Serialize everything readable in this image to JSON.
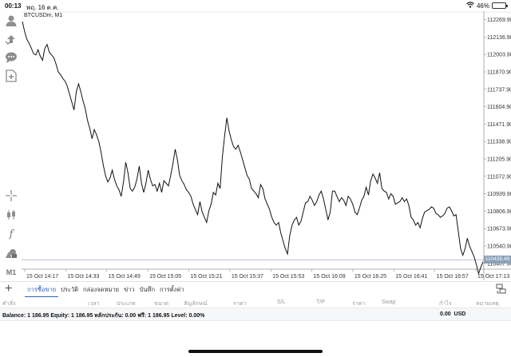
{
  "status_bar": {
    "time": "00:13",
    "date": "พฤ. 16 ต.ค.",
    "battery": "46%",
    "battery_level": 0.46
  },
  "left_toolbar": [
    {
      "name": "account-icon"
    },
    {
      "name": "trade-icon"
    },
    {
      "name": "chat-icon"
    },
    {
      "name": "new-order-icon"
    },
    {
      "name": "crosshair-icon"
    },
    {
      "name": "candlestick-icon"
    },
    {
      "name": "indicator-icon",
      "label": "f"
    },
    {
      "name": "objects-icon"
    },
    {
      "name": "timeframe-label",
      "label": "M1"
    }
  ],
  "chart": {
    "symbol": "BTCUSDm, M1",
    "current_price_label": "110435.49",
    "current_price": 110435.49
  },
  "tabs": [
    {
      "label": "การซื้อขาย",
      "active": true
    },
    {
      "label": "ประวัติ",
      "active": false
    },
    {
      "label": "กล่องจดหมาย",
      "active": false
    },
    {
      "label": "ข่าว",
      "active": false
    },
    {
      "label": "บันทึก",
      "active": false
    },
    {
      "label": "การตั้งค่า",
      "active": false
    }
  ],
  "columns": [
    "คำสั่ง",
    "เวลา",
    "ประเภท",
    "ขนาด",
    "สัญลักษณ์",
    "ราคา",
    "S/L",
    "T/P",
    "ราคา",
    "Swap",
    "กำไร",
    "หมายเหตุ"
  ],
  "balance": {
    "text": "Balance: 1 186.95 Equity: 1 186.95 หลักประกัน: 0.00 ฟรี: 1 186.95 Level: 0.00%",
    "profit": "0.00",
    "currency": "USD"
  },
  "chart_data": {
    "type": "line",
    "x_tick_labels": [
      "15 Oct 14:17",
      "15 Oct 14:33",
      "15 Oct 14:49",
      "15 Oct 15:05",
      "15 Oct 15:21",
      "15 Oct 15:37",
      "15 Oct 15:53",
      "15 Oct 16:09",
      "15 Oct 16:25",
      "15 Oct 16:41",
      "15 Oct 16:57",
      "15 Oct 17:13"
    ],
    "y_tick_labels": [
      "112269.90",
      "112136.90",
      "112003.90",
      "111870.90",
      "111737.90",
      "111604.90",
      "111471.90",
      "111338.90",
      "111205.90",
      "111072.90",
      "110939.90",
      "110806.90",
      "110673.90",
      "110540.90",
      "110407.90"
    ],
    "ylim": [
      110370,
      112310
    ],
    "xlim": [
      0,
      189
    ],
    "grid": false,
    "series": [
      {
        "values": [
          112255,
          112180,
          112120,
          112090,
          112050,
          112010,
          112000,
          112040,
          111990,
          111960,
          112050,
          112080,
          112020,
          112000,
          111980,
          111930,
          111870,
          111850,
          111820,
          111800,
          111760,
          111700,
          111640,
          111580,
          111720,
          111780,
          111720,
          111650,
          111590,
          111500,
          111440,
          111360,
          111430,
          111390,
          111340,
          111260,
          111160,
          111080,
          111030,
          111060,
          111120,
          111050,
          111000,
          110970,
          110920,
          111030,
          111180,
          111100,
          110980,
          110960,
          110990,
          111050,
          111150,
          111020,
          110950,
          111020,
          111120,
          111050,
          111000,
          111010,
          110960,
          111020,
          110950,
          111040,
          111020,
          111000,
          111080,
          111170,
          111280,
          111200,
          111080,
          111040,
          111010,
          110970,
          110950,
          110920,
          110860,
          110820,
          110780,
          110880,
          110800,
          110760,
          110720,
          110810,
          110860,
          110950,
          110930,
          111020,
          110980,
          111220,
          111380,
          111520,
          111420,
          111350,
          111300,
          111280,
          111310,
          111260,
          111200,
          111140,
          111080,
          111050,
          110980,
          110960,
          110940,
          110910,
          111010,
          110980,
          110900,
          110860,
          110820,
          110760,
          110720,
          110700,
          110720,
          110640,
          110580,
          110520,
          110480,
          110620,
          110700,
          110740,
          110760,
          110700,
          110730,
          110800,
          110870,
          110880,
          110920,
          110890,
          110850,
          110880,
          110930,
          110960,
          110900,
          110820,
          110740,
          110800,
          110960,
          110960,
          110920,
          110880,
          110910,
          110890,
          110850,
          110920,
          110900,
          110860,
          110800,
          110780,
          110830,
          110890,
          110920,
          110990,
          110930,
          111040,
          111090,
          111060,
          111020,
          111100,
          110980,
          110960,
          110950,
          110900,
          110940,
          110920,
          110860,
          110870,
          110880,
          110910,
          110880,
          110900,
          110850,
          110760,
          110740,
          110700,
          110720,
          110680,
          110750,
          110800,
          110810,
          110820,
          110840,
          110830,
          110790,
          110780,
          110760,
          110770,
          110790,
          110830,
          110840,
          110810,
          110770,
          110780,
          110650,
          110520,
          110470,
          110520,
          110600,
          110540,
          110500,
          110460,
          110400,
          110330,
          110380,
          110420
        ]
      }
    ]
  }
}
